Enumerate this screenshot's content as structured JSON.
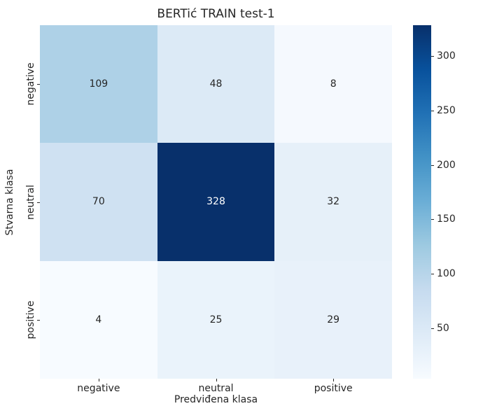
{
  "chart_data": {
    "type": "heatmap",
    "title": "BERTić TRAIN test-1",
    "xlabel": "Predviđena klasa",
    "ylabel": "Stvarna klasa",
    "x_categories": [
      "negative",
      "neutral",
      "positive"
    ],
    "y_categories": [
      "negative",
      "neutral",
      "positive"
    ],
    "matrix": [
      [
        109,
        48,
        8
      ],
      [
        70,
        328,
        32
      ],
      [
        4,
        25,
        29
      ]
    ],
    "vmin": 4,
    "vmax": 328,
    "colormap_name": "Blues",
    "cell_colors": [
      [
        "#aed1e7",
        "#dceaf6",
        "#f5f9fe"
      ],
      [
        "#cfe1f2",
        "#08306b",
        "#e6f0f9"
      ],
      [
        "#f7fbff",
        "#eaf3fb",
        "#e8f1fa"
      ]
    ],
    "cell_text_colors": [
      [
        "#262626",
        "#262626",
        "#262626"
      ],
      [
        "#262626",
        "#ffffff",
        "#262626"
      ],
      [
        "#262626",
        "#262626",
        "#262626"
      ]
    ],
    "colorbar": {
      "ticks": [
        50,
        100,
        150,
        200,
        250,
        300
      ],
      "gradient_stops": [
        "#f7fbff",
        "#deebf7",
        "#c6dbef",
        "#9ecae1",
        "#6baed6",
        "#4292c6",
        "#2171b5",
        "#08519c",
        "#08306b"
      ]
    },
    "text_color": "#262626",
    "background": "#ffffff",
    "legend_position": "right-colorbar",
    "grid": false
  }
}
